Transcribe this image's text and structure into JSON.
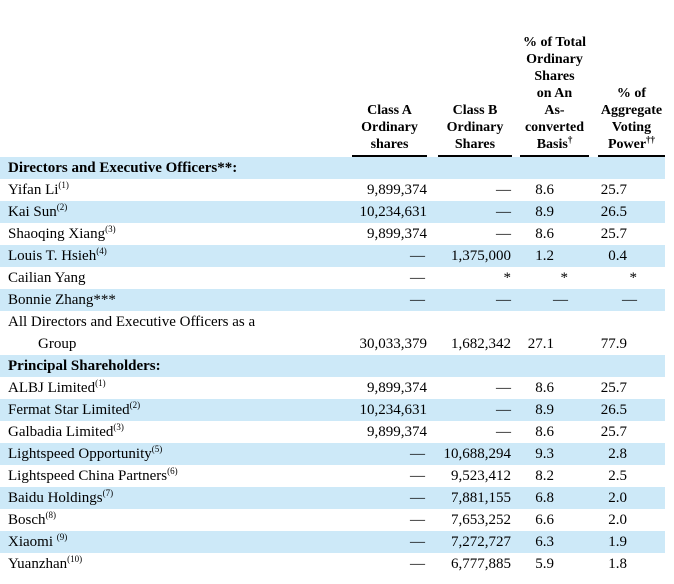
{
  "colors": {
    "row_stripe": "#cde9f8",
    "text": "#000000",
    "rule": "#000000"
  },
  "table": {
    "columns": [
      {
        "lines": "Class A\nOrdinary\nshares",
        "sup": ""
      },
      {
        "lines": "Class B\nOrdinary\nShares",
        "sup": ""
      },
      {
        "lines": "% of Total\nOrdinary\nShares\non An\nAs-\nconverted\nBasis",
        "sup": "†"
      },
      {
        "lines": "% of\nAggregate\nVoting\nPower",
        "sup": "††"
      }
    ],
    "sections": [
      {
        "header": "Directors and Executive Officers**:",
        "rows": [
          {
            "name": "Yifan Li",
            "sup": "(1)",
            "classA": "9,899,374",
            "classB": "—",
            "pct": "8.6",
            "voting": "25.7"
          },
          {
            "name": "Kai Sun",
            "sup": "(2)",
            "classA": "10,234,631",
            "classB": "—",
            "pct": "8.9",
            "voting": "26.5"
          },
          {
            "name": "Shaoqing Xiang",
            "sup": "(3)",
            "classA": "9,899,374",
            "classB": "—",
            "pct": "8.6",
            "voting": "25.7"
          },
          {
            "name": "Louis T. Hsieh",
            "sup": "(4)",
            "classA": "—",
            "classB": "1,375,000",
            "pct": "1.2",
            "voting": "0.4"
          },
          {
            "name": "Cailian Yang",
            "sup": "",
            "classA": "—",
            "classB": "*",
            "pct": "*",
            "voting": "*"
          },
          {
            "name": "Bonnie Zhang***",
            "sup": "",
            "classA": "—",
            "classB": "—",
            "pct": "—",
            "voting": "—"
          },
          {
            "name": "All Directors and Executive Officers as a",
            "name2": "Group",
            "sup": "",
            "classA": "30,033,379",
            "classB": "1,682,342",
            "pct": "27.1",
            "voting": "77.9"
          }
        ]
      },
      {
        "header": "Principal Shareholders:",
        "rows": [
          {
            "name": "ALBJ Limited",
            "sup": "(1)",
            "classA": "9,899,374",
            "classB": "—",
            "pct": "8.6",
            "voting": "25.7"
          },
          {
            "name": "Fermat Star Limited",
            "sup": "(2)",
            "classA": "10,234,631",
            "classB": "—",
            "pct": "8.9",
            "voting": "26.5"
          },
          {
            "name": "Galbadia Limited",
            "sup": "(3)",
            "classA": "9,899,374",
            "classB": "—",
            "pct": "8.6",
            "voting": "25.7"
          },
          {
            "name": "Lightspeed Opportunity",
            "sup": "(5)",
            "classA": "—",
            "classB": "10,688,294",
            "pct": "9.3",
            "voting": "2.8"
          },
          {
            "name": "Lightspeed China Partners",
            "sup": "(6)",
            "classA": "—",
            "classB": "9,523,412",
            "pct": "8.2",
            "voting": "2.5"
          },
          {
            "name": "Baidu Holdings",
            "sup": "(7)",
            "classA": "—",
            "classB": "7,881,155",
            "pct": "6.8",
            "voting": "2.0"
          },
          {
            "name": "Bosch",
            "sup": "(8)",
            "classA": "—",
            "classB": "7,653,252",
            "pct": "6.6",
            "voting": "2.0"
          },
          {
            "name": "Xiaomi ",
            "sup": "(9)",
            "classA": "—",
            "classB": "7,272,727",
            "pct": "6.3",
            "voting": "1.9"
          },
          {
            "name": "Yuanzhan",
            "sup": "(10)",
            "classA": "—",
            "classB": "6,777,885",
            "pct": "5.9",
            "voting": "1.8"
          }
        ]
      }
    ]
  }
}
